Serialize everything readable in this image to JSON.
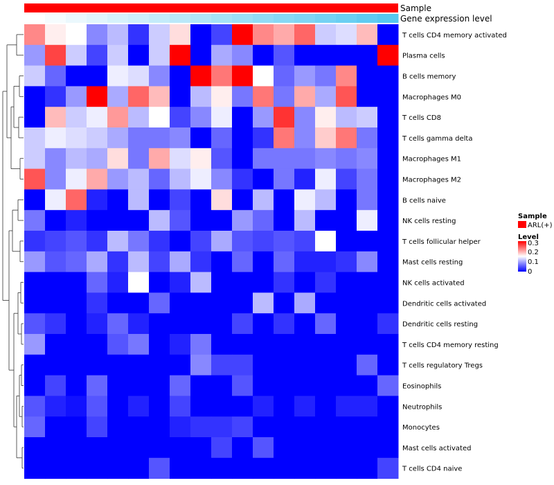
{
  "chart_data": {
    "type": "heatmap",
    "annotation_tracks": [
      {
        "name": "Sample",
        "color": "#ff0000"
      },
      {
        "name": "Gene expression level",
        "colors": [
          "#ffffff",
          "#56c8f0"
        ]
      }
    ],
    "rows": [
      "T cells CD4 memory activated",
      "Plasma cells",
      "B cells memory",
      "Macrophages M0",
      "T cells CD8",
      "T cells gamma delta",
      "Macrophages M1",
      "Macrophages M2",
      "B cells naive",
      "NK cells resting",
      "T cells follicular helper",
      "Mast cells resting",
      "NK cells activated",
      "Dendritic cells activated",
      "Dendritic cells resting",
      "T cells CD4 memory resting",
      "T cells regulatory  Tregs",
      "Eosinophils",
      "Neutrophils",
      "Monocytes",
      "Mast cells activated",
      "T cells CD4 naive"
    ],
    "n_columns": 18,
    "values": [
      [
        0.22,
        0.16,
        0.15,
        0.08,
        0.11,
        0.03,
        0.12,
        0.17,
        0.0,
        0.04,
        0.3,
        0.22,
        0.2,
        0.24,
        0.12,
        0.13,
        0.19,
        0.0
      ],
      [
        0.09,
        0.26,
        0.12,
        0.04,
        0.12,
        0.0,
        0.12,
        0.3,
        0.0,
        0.1,
        0.08,
        0.0,
        0.05,
        0.0,
        0.0,
        0.0,
        0.0,
        0.3
      ],
      [
        0.12,
        0.06,
        0.0,
        0.0,
        0.14,
        0.13,
        0.08,
        0.0,
        0.3,
        0.23,
        0.3,
        0.15,
        0.06,
        0.09,
        0.07,
        0.22,
        0.0,
        0.0
      ],
      [
        0.0,
        0.03,
        0.09,
        0.3,
        0.1,
        0.24,
        0.19,
        0.0,
        0.11,
        0.16,
        0.07,
        0.23,
        0.07,
        0.2,
        0.1,
        0.25,
        0.0,
        0.0
      ],
      [
        0.0,
        0.19,
        0.12,
        0.14,
        0.21,
        0.11,
        0.15,
        0.04,
        0.08,
        0.14,
        0.0,
        0.09,
        0.27,
        0.08,
        0.16,
        0.11,
        0.12,
        0.0
      ],
      [
        0.12,
        0.14,
        0.13,
        0.12,
        0.1,
        0.07,
        0.07,
        0.08,
        0.0,
        0.06,
        0.0,
        0.03,
        0.23,
        0.08,
        0.18,
        0.23,
        0.07,
        0.0
      ],
      [
        0.12,
        0.08,
        0.11,
        0.1,
        0.17,
        0.07,
        0.2,
        0.13,
        0.16,
        0.05,
        0.0,
        0.07,
        0.07,
        0.07,
        0.08,
        0.07,
        0.08,
        0.0
      ],
      [
        0.25,
        0.08,
        0.14,
        0.2,
        0.09,
        0.11,
        0.06,
        0.11,
        0.14,
        0.08,
        0.03,
        0.0,
        0.07,
        0.02,
        0.14,
        0.04,
        0.07,
        0.0
      ],
      [
        0.0,
        0.14,
        0.24,
        0.02,
        0.0,
        0.11,
        0.0,
        0.04,
        0.0,
        0.17,
        0.0,
        0.11,
        0.0,
        0.14,
        0.11,
        0.0,
        0.07,
        0.0
      ],
      [
        0.07,
        0.0,
        0.02,
        0.0,
        0.0,
        0.0,
        0.11,
        0.05,
        0.0,
        0.0,
        0.09,
        0.06,
        0.0,
        0.11,
        0.0,
        0.0,
        0.14,
        0.0
      ],
      [
        0.03,
        0.04,
        0.05,
        0.03,
        0.11,
        0.07,
        0.03,
        0.0,
        0.04,
        0.1,
        0.05,
        0.04,
        0.05,
        0.04,
        0.15,
        0.0,
        0.0,
        0.0
      ],
      [
        0.09,
        0.05,
        0.06,
        0.1,
        0.03,
        0.11,
        0.04,
        0.1,
        0.03,
        0.0,
        0.06,
        0.0,
        0.06,
        0.02,
        0.02,
        0.03,
        0.08,
        0.0
      ],
      [
        0.0,
        0.0,
        0.0,
        0.06,
        0.02,
        0.15,
        0.0,
        0.02,
        0.11,
        0.0,
        0.0,
        0.0,
        0.03,
        0.0,
        0.03,
        0.0,
        0.0,
        0.0
      ],
      [
        0.0,
        0.0,
        0.0,
        0.03,
        0.0,
        0.0,
        0.06,
        0.0,
        0.0,
        0.0,
        0.0,
        0.11,
        0.0,
        0.1,
        0.0,
        0.0,
        0.0,
        0.0
      ],
      [
        0.05,
        0.03,
        0.0,
        0.02,
        0.06,
        0.02,
        0.0,
        0.0,
        0.0,
        0.0,
        0.04,
        0.0,
        0.03,
        0.0,
        0.06,
        0.0,
        0.0,
        0.03
      ],
      [
        0.09,
        0.0,
        0.0,
        0.0,
        0.05,
        0.07,
        0.0,
        0.02,
        0.07,
        0.0,
        0.0,
        0.0,
        0.0,
        0.0,
        0.0,
        0.0,
        0.0,
        0.0
      ],
      [
        0.0,
        0.0,
        0.0,
        0.0,
        0.0,
        0.0,
        0.0,
        0.0,
        0.08,
        0.04,
        0.04,
        0.0,
        0.0,
        0.0,
        0.0,
        0.0,
        0.06,
        0.0
      ],
      [
        0.0,
        0.04,
        0.0,
        0.06,
        0.0,
        0.0,
        0.0,
        0.06,
        0.0,
        0.0,
        0.05,
        0.0,
        0.0,
        0.0,
        0.0,
        0.0,
        0.0,
        0.06
      ],
      [
        0.05,
        0.02,
        0.01,
        0.05,
        0.0,
        0.02,
        0.0,
        0.04,
        0.0,
        0.0,
        0.0,
        0.02,
        0.0,
        0.02,
        0.0,
        0.02,
        0.02,
        0.0
      ],
      [
        0.06,
        0.0,
        0.0,
        0.04,
        0.0,
        0.0,
        0.0,
        0.02,
        0.03,
        0.03,
        0.04,
        0.0,
        0.0,
        0.0,
        0.0,
        0.0,
        0.0,
        0.0
      ],
      [
        0.0,
        0.0,
        0.0,
        0.0,
        0.0,
        0.0,
        0.0,
        0.0,
        0.0,
        0.04,
        0.0,
        0.05,
        0.0,
        0.0,
        0.0,
        0.0,
        0.0,
        0.0
      ],
      [
        0.0,
        0.0,
        0.0,
        0.0,
        0.0,
        0.0,
        0.05,
        0.0,
        0.0,
        0.0,
        0.0,
        0.0,
        0.0,
        0.0,
        0.0,
        0.0,
        0.0,
        0.04
      ]
    ],
    "gene_expression_level": [
      0.0,
      0.06,
      0.12,
      0.18,
      0.24,
      0.29,
      0.35,
      0.41,
      0.47,
      0.53,
      0.59,
      0.65,
      0.71,
      0.76,
      0.82,
      0.88,
      0.94,
      1.0
    ],
    "color_scale": {
      "min": 0,
      "mid": 0.15,
      "max": 0.3,
      "low_color": "#0000ff",
      "mid_color": "#ffffff",
      "high_color": "#ff0000"
    },
    "legend": {
      "position": "right",
      "sample_title": "Sample",
      "sample_entry": "ARL(+)",
      "level_title": "Level",
      "level_ticks": [
        "0.3",
        "0.2",
        "0.1",
        "0"
      ]
    },
    "dendrogram": "rows"
  }
}
